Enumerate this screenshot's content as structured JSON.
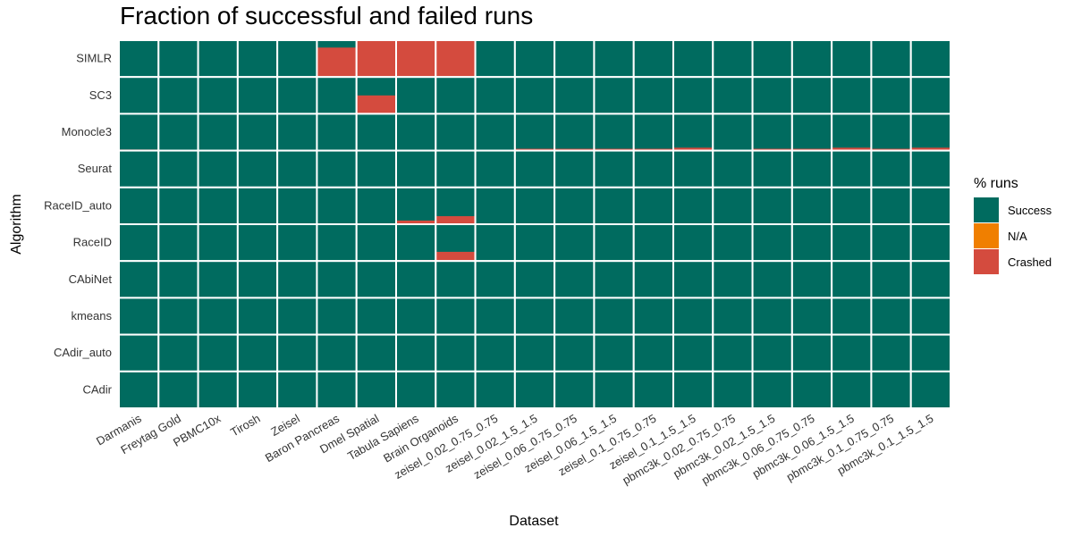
{
  "chart_data": {
    "type": "heatmap",
    "title": "Fraction of successful and failed runs",
    "xlabel": "Dataset",
    "ylabel": "Algorithm",
    "legend": {
      "title": "% runs",
      "position": "right",
      "entries": [
        {
          "label": "Success",
          "color": "#006b5f"
        },
        {
          "label": "N/A",
          "color": "#f07f00"
        },
        {
          "label": "Crashed",
          "color": "#d44b3e"
        }
      ]
    },
    "datasets": [
      "Darmanis",
      "Freytag Gold",
      "PBMC10x",
      "Tirosh",
      "Zeisel",
      "Baron Pancreas",
      "Dmel Spatial",
      "Tabula Sapiens",
      "Brain Organoids",
      "zeisel_0.02_0.75_0.75",
      "zeisel_0.02_1.5_1.5",
      "zeisel_0.06_0.75_0.75",
      "zeisel_0.06_1.5_1.5",
      "zeisel_0.1_0.75_0.75",
      "zeisel_0.1_1.5_1.5",
      "pbmc3k_0.02_0.75_0.75",
      "pbmc3k_0.02_1.5_1.5",
      "pbmc3k_0.06_0.75_0.75",
      "pbmc3k_0.06_1.5_1.5",
      "pbmc3k_0.1_0.75_0.75",
      "pbmc3k_0.1_1.5_1.5"
    ],
    "algorithms": [
      "SIMLR",
      "SC3",
      "Monocle3",
      "Seurat",
      "RaceID_auto",
      "RaceID",
      "CAbiNet",
      "kmeans",
      "CAdir_auto",
      "CAdir"
    ],
    "series": [
      {
        "name": "Crashed",
        "values": [
          [
            0,
            0,
            0,
            0,
            0,
            0.8,
            1.0,
            1.0,
            1.0,
            0,
            0,
            0,
            0,
            0,
            0,
            0,
            0,
            0,
            0,
            0,
            0
          ],
          [
            0,
            0,
            0,
            0,
            0,
            0,
            0.5,
            0,
            0,
            0,
            0,
            0,
            0,
            0,
            0,
            0,
            0,
            0,
            0,
            0,
            0
          ],
          [
            0.03,
            0,
            0,
            0,
            0,
            0,
            0,
            0,
            0,
            0,
            0.05,
            0.05,
            0.05,
            0.05,
            0.08,
            0,
            0.05,
            0.05,
            0.08,
            0.05,
            0.08
          ],
          [
            0,
            0,
            0,
            0,
            0,
            0,
            0,
            0,
            0,
            0,
            0,
            0,
            0,
            0,
            0,
            0,
            0,
            0,
            0,
            0,
            0
          ],
          [
            0,
            0,
            0,
            0,
            0,
            0,
            0,
            0.1,
            0.22,
            0,
            0,
            0,
            0,
            0,
            0,
            0,
            0,
            0,
            0,
            0,
            0
          ],
          [
            0,
            0,
            0,
            0,
            0,
            0,
            0,
            0.03,
            0.25,
            0,
            0,
            0,
            0,
            0,
            0,
            0,
            0,
            0,
            0,
            0,
            0
          ],
          [
            0,
            0,
            0,
            0,
            0,
            0,
            0,
            0,
            0,
            0,
            0,
            0,
            0,
            0,
            0,
            0,
            0,
            0,
            0,
            0,
            0
          ],
          [
            0,
            0,
            0,
            0,
            0,
            0,
            0,
            0,
            0,
            0,
            0,
            0,
            0,
            0,
            0,
            0,
            0,
            0,
            0,
            0,
            0
          ],
          [
            0,
            0,
            0,
            0,
            0,
            0,
            0,
            0,
            0,
            0,
            0,
            0,
            0,
            0,
            0,
            0,
            0,
            0,
            0,
            0,
            0
          ],
          [
            0,
            0,
            0,
            0,
            0,
            0,
            0,
            0,
            0,
            0,
            0,
            0,
            0,
            0,
            0,
            0,
            0,
            0,
            0,
            0,
            0
          ]
        ]
      }
    ]
  }
}
